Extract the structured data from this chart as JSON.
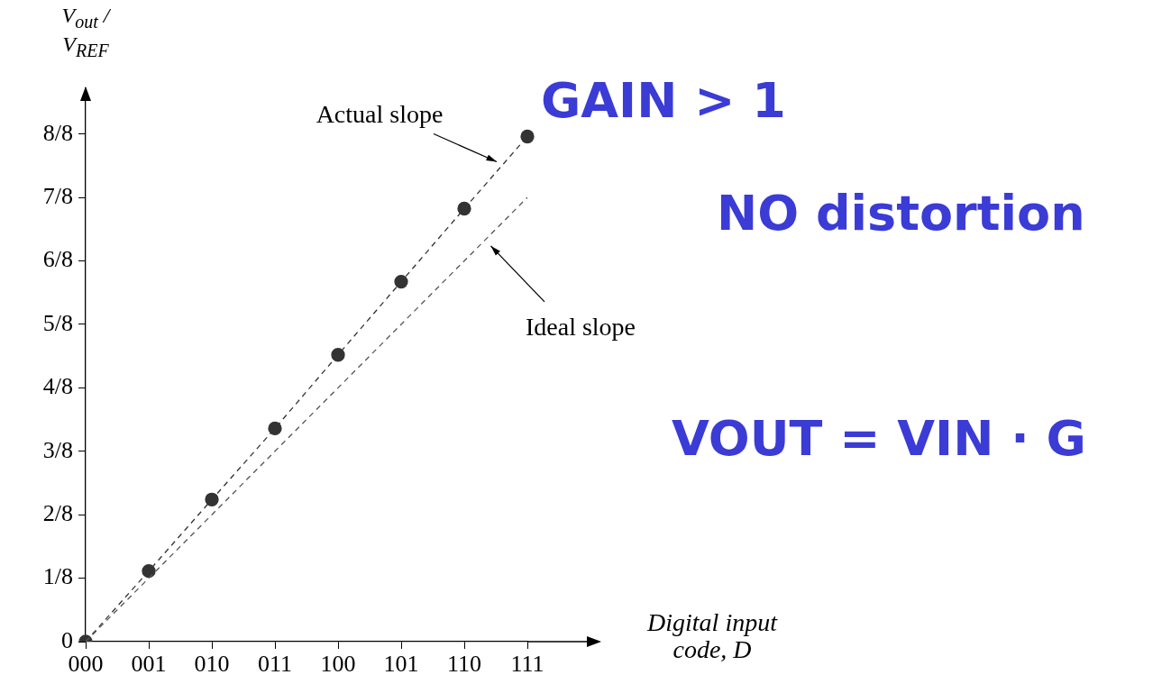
{
  "chart_data": {
    "type": "line",
    "xlabel": "Digital input code, D",
    "ylabel": "V$_{out}$ / V$_{REF}$",
    "categories": [
      "000",
      "001",
      "010",
      "011",
      "100",
      "101",
      "110",
      "111"
    ],
    "series": [
      {
        "name": "Actual slope",
        "color": "#333333",
        "marker": "circle",
        "line_style": "dashed",
        "values": [
          0,
          0.139,
          0.28,
          0.42,
          0.565,
          0.709,
          0.853,
          0.995
        ]
      },
      {
        "name": "Ideal slope",
        "color": "#555555",
        "marker": "none",
        "line_style": "dashed",
        "values": [
          0,
          0.125,
          0.25,
          0.375,
          0.5,
          0.625,
          0.75,
          0.875
        ]
      }
    ],
    "ylim": [
      0,
      1.09
    ],
    "yticks": [
      0,
      {
        "value": 0.125,
        "label": "1/8"
      },
      {
        "value": 0.25,
        "label": "2/8"
      },
      {
        "value": 0.375,
        "label": "3/8"
      },
      {
        "value": 0.5,
        "label": "4/8"
      },
      {
        "value": 0.625,
        "label": "5/8"
      },
      {
        "value": 0.75,
        "label": "6/8"
      },
      {
        "value": 0.875,
        "label": "7/8"
      },
      {
        "value": 1,
        "label": "8/8"
      }
    ],
    "grid": false,
    "legend": false,
    "annotations": [
      "GAIN > 1",
      "NO distortion",
      "VOUT = VIN · G"
    ]
  }
}
